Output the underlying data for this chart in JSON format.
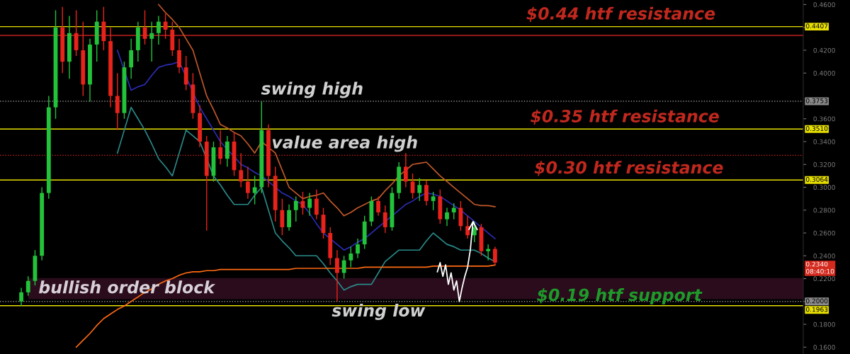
{
  "chart_data": {
    "type": "candlestick",
    "categories": [
      null,
      null,
      null,
      null,
      null,
      null,
      null,
      null,
      null,
      null,
      null,
      null,
      null,
      null,
      null,
      null,
      null,
      null,
      null,
      null,
      null,
      null,
      null,
      null,
      null,
      null,
      null,
      null,
      null,
      null,
      null,
      null,
      null,
      null,
      null,
      null,
      null,
      null,
      null,
      null,
      null,
      null,
      null,
      null,
      null,
      null,
      null,
      null,
      null,
      null,
      null,
      null,
      null,
      null,
      null,
      null,
      null,
      null,
      null,
      null,
      null,
      null,
      null,
      null,
      null,
      null,
      null,
      null,
      null,
      null
    ],
    "ohlc": [
      [
        0.2,
        0.212,
        0.196,
        0.208
      ],
      [
        0.208,
        0.222,
        0.205,
        0.218
      ],
      [
        0.218,
        0.245,
        0.214,
        0.24
      ],
      [
        0.24,
        0.3,
        0.236,
        0.295
      ],
      [
        0.295,
        0.38,
        0.29,
        0.37
      ],
      [
        0.37,
        0.455,
        0.36,
        0.44
      ],
      [
        0.44,
        0.458,
        0.4,
        0.41
      ],
      [
        0.41,
        0.45,
        0.395,
        0.435
      ],
      [
        0.435,
        0.455,
        0.415,
        0.42
      ],
      [
        0.42,
        0.445,
        0.38,
        0.39
      ],
      [
        0.39,
        0.43,
        0.375,
        0.425
      ],
      [
        0.425,
        0.455,
        0.41,
        0.445
      ],
      [
        0.445,
        0.458,
        0.42,
        0.428
      ],
      [
        0.428,
        0.44,
        0.37,
        0.38
      ],
      [
        0.38,
        0.4,
        0.35,
        0.365
      ],
      [
        0.365,
        0.41,
        0.36,
        0.405
      ],
      [
        0.405,
        0.43,
        0.395,
        0.42
      ],
      [
        0.42,
        0.445,
        0.41,
        0.44
      ],
      [
        0.44,
        0.455,
        0.425,
        0.43
      ],
      [
        0.43,
        0.445,
        0.41,
        0.435
      ],
      [
        0.435,
        0.45,
        0.425,
        0.445
      ],
      [
        0.445,
        0.452,
        0.43,
        0.438
      ],
      [
        0.438,
        0.445,
        0.415,
        0.42
      ],
      [
        0.42,
        0.43,
        0.4,
        0.405
      ],
      [
        0.405,
        0.415,
        0.385,
        0.39
      ],
      [
        0.39,
        0.4,
        0.36,
        0.365
      ],
      [
        0.365,
        0.372,
        0.335,
        0.34
      ],
      [
        0.34,
        0.345,
        0.262,
        0.31
      ],
      [
        0.31,
        0.34,
        0.305,
        0.335
      ],
      [
        0.335,
        0.35,
        0.32,
        0.325
      ],
      [
        0.325,
        0.345,
        0.318,
        0.34
      ],
      [
        0.34,
        0.348,
        0.31,
        0.315
      ],
      [
        0.315,
        0.33,
        0.3,
        0.305
      ],
      [
        0.305,
        0.318,
        0.29,
        0.295
      ],
      [
        0.295,
        0.31,
        0.285,
        0.3
      ],
      [
        0.3,
        0.375,
        0.295,
        0.35
      ],
      [
        0.35,
        0.355,
        0.3,
        0.31
      ],
      [
        0.31,
        0.318,
        0.27,
        0.28
      ],
      [
        0.28,
        0.29,
        0.258,
        0.265
      ],
      [
        0.265,
        0.285,
        0.262,
        0.28
      ],
      [
        0.28,
        0.292,
        0.27,
        0.288
      ],
      [
        0.288,
        0.296,
        0.276,
        0.282
      ],
      [
        0.282,
        0.295,
        0.275,
        0.29
      ],
      [
        0.29,
        0.298,
        0.272,
        0.276
      ],
      [
        0.276,
        0.282,
        0.255,
        0.26
      ],
      [
        0.26,
        0.265,
        0.232,
        0.238
      ],
      [
        0.238,
        0.245,
        0.2,
        0.225
      ],
      [
        0.225,
        0.24,
        0.22,
        0.236
      ],
      [
        0.236,
        0.248,
        0.23,
        0.242
      ],
      [
        0.242,
        0.255,
        0.238,
        0.25
      ],
      [
        0.25,
        0.275,
        0.246,
        0.27
      ],
      [
        0.27,
        0.292,
        0.266,
        0.288
      ],
      [
        0.288,
        0.292,
        0.275,
        0.278
      ],
      [
        0.278,
        0.284,
        0.26,
        0.265
      ],
      [
        0.265,
        0.3,
        0.262,
        0.295
      ],
      [
        0.295,
        0.322,
        0.29,
        0.318
      ],
      [
        0.318,
        0.33,
        0.3,
        0.305
      ],
      [
        0.305,
        0.312,
        0.29,
        0.295
      ],
      [
        0.295,
        0.308,
        0.288,
        0.302
      ],
      [
        0.302,
        0.306,
        0.284,
        0.288
      ],
      [
        0.288,
        0.296,
        0.28,
        0.292
      ],
      [
        0.292,
        0.298,
        0.268,
        0.272
      ],
      [
        0.272,
        0.282,
        0.266,
        0.278
      ],
      [
        0.278,
        0.286,
        0.272,
        0.282
      ],
      [
        0.282,
        0.288,
        0.262,
        0.266
      ],
      [
        0.266,
        0.275,
        0.255,
        0.258
      ],
      [
        0.258,
        0.27,
        0.252,
        0.265
      ],
      [
        0.265,
        0.268,
        0.24,
        0.244
      ],
      [
        0.244,
        0.25,
        0.236,
        0.246
      ],
      [
        0.246,
        0.248,
        0.232,
        0.234
      ]
    ],
    "series": [
      {
        "type": "line",
        "color": "#c0582a",
        "values": [
          null,
          null,
          null,
          null,
          null,
          null,
          null,
          null,
          null,
          null,
          null,
          null,
          null,
          null,
          null,
          null,
          null,
          null,
          null,
          null,
          0.46,
          0.453,
          0.447,
          0.44,
          0.43,
          0.42,
          0.4,
          0.38,
          0.368,
          0.355,
          0.352,
          0.348,
          0.345,
          0.338,
          0.33,
          0.34,
          0.335,
          0.33,
          0.315,
          0.3,
          0.295,
          0.29,
          0.292,
          0.293,
          0.295,
          0.288,
          0.282,
          0.275,
          0.278,
          0.282,
          0.285,
          0.288,
          0.29,
          0.297,
          0.303,
          0.31,
          0.315,
          0.32,
          0.321,
          0.322,
          0.316,
          0.31,
          0.305,
          0.3,
          0.295,
          0.29,
          0.285,
          0.284,
          0.284,
          0.283
        ]
      },
      {
        "type": "line",
        "color": "#2c2cb8",
        "values": [
          null,
          null,
          null,
          null,
          null,
          null,
          null,
          null,
          null,
          null,
          null,
          null,
          null,
          null,
          0.42,
          null,
          0.385,
          0.388,
          0.39,
          0.398,
          0.405,
          0.407,
          0.408,
          0.41,
          null,
          null,
          0.37,
          0.36,
          0.35,
          0.34,
          0.333,
          0.327,
          0.32,
          0.317,
          0.313,
          0.31,
          0.305,
          0.3,
          0.295,
          0.292,
          0.288,
          0.285,
          0.277,
          0.268,
          0.26,
          0.255,
          0.25,
          0.245,
          0.248,
          0.252,
          0.255,
          0.26,
          0.265,
          0.27,
          0.275,
          0.28,
          0.285,
          0.288,
          0.292,
          0.295,
          0.294,
          0.292,
          0.288,
          0.284,
          0.28,
          0.275,
          0.27,
          0.265,
          0.26,
          0.255
        ]
      },
      {
        "type": "line",
        "color": "#2a8a8a",
        "values": [
          null,
          null,
          null,
          null,
          null,
          null,
          null,
          null,
          null,
          null,
          null,
          null,
          null,
          null,
          0.33,
          0.35,
          0.37,
          0.36,
          0.35,
          0.338,
          0.325,
          0.318,
          0.31,
          0.33,
          0.35,
          0.345,
          0.34,
          null,
          0.31,
          0.302,
          0.293,
          0.285,
          0.285,
          0.285,
          0.293,
          0.3,
          0.28,
          0.26,
          0.253,
          0.247,
          0.24,
          0.24,
          0.24,
          0.24,
          0.233,
          0.225,
          0.218,
          0.21,
          0.213,
          0.215,
          0.215,
          0.215,
          0.225,
          0.235,
          0.24,
          0.245,
          0.245,
          0.245,
          0.245,
          0.253,
          0.26,
          0.255,
          0.25,
          0.248,
          0.245,
          0.245,
          0.245,
          0.242,
          0.238,
          0.235
        ]
      },
      {
        "type": "line",
        "color": "#ff6a13",
        "values": [
          null,
          null,
          null,
          null,
          null,
          null,
          null,
          null,
          0.16,
          0.166,
          0.172,
          0.179,
          0.185,
          0.189,
          0.193,
          0.196,
          0.2,
          0.204,
          0.208,
          0.211,
          0.215,
          0.218,
          0.22,
          0.223,
          0.225,
          0.226,
          0.226,
          0.227,
          0.227,
          0.228,
          0.228,
          0.228,
          0.228,
          0.228,
          0.228,
          0.228,
          0.228,
          0.228,
          0.228,
          0.228,
          0.229,
          0.229,
          0.229,
          0.229,
          0.229,
          0.229,
          0.229,
          0.229,
          0.229,
          0.229,
          0.23,
          0.23,
          0.23,
          0.23,
          0.23,
          0.23,
          0.23,
          0.23,
          0.23,
          0.23,
          0.231,
          0.231,
          0.231,
          0.231,
          0.231,
          0.231,
          0.231,
          0.231,
          0.231,
          0.232
        ]
      }
    ],
    "ylim": [
      0.154,
      0.464
    ],
    "yticks": [
      {
        "value": 0.16,
        "label": "0.1600"
      },
      {
        "value": 0.18,
        "label": "0.1800"
      },
      {
        "value": 0.2,
        "label": null
      },
      {
        "value": 0.22,
        "label": "0.2200"
      },
      {
        "value": 0.24,
        "label": "0.2400"
      },
      {
        "value": 0.26,
        "label": "0.2600"
      },
      {
        "value": 0.28,
        "label": "0.2800"
      },
      {
        "value": 0.3,
        "label": "0.3000"
      },
      {
        "value": 0.32,
        "label": "0.3200"
      },
      {
        "value": 0.34,
        "label": "0.3400"
      },
      {
        "value": 0.36,
        "label": "0.3600"
      },
      {
        "value": 0.4,
        "label": "0.4000"
      },
      {
        "value": 0.42,
        "label": "0.4200"
      },
      {
        "value": 0.44,
        "label": null
      },
      {
        "value": 0.46,
        "label": "0.4600"
      }
    ],
    "tick_labels": "y",
    "grid": false,
    "ref_lines": [
      {
        "axis": "y",
        "value": 0.4407,
        "label": "0.4407",
        "color": "#e8e000",
        "line_style": "solid"
      },
      {
        "axis": "y",
        "value": 0.433,
        "label": null,
        "color": "#c02020",
        "line_style": "solid"
      },
      {
        "axis": "y",
        "value": 0.3753,
        "label": "0.3753",
        "color": "#8a8a8a",
        "line_style": "dotted"
      },
      {
        "axis": "y",
        "value": 0.351,
        "label": "0.3510",
        "color": "#e8e000",
        "line_style": "solid"
      },
      {
        "axis": "y",
        "value": 0.328,
        "label": null,
        "color": "#d02020",
        "line_style": "dotted"
      },
      {
        "axis": "y",
        "value": 0.3064,
        "label": "0.3064",
        "color": "#e8e000",
        "line_style": "solid"
      },
      {
        "axis": "y",
        "value": 0.2,
        "label": "0.2000",
        "color": "#8a8a8a",
        "line_style": "dotted"
      },
      {
        "axis": "y",
        "value": 0.1963,
        "label": "0.1963",
        "color": "#e8e000",
        "line_style": "solid"
      }
    ],
    "bands": [
      {
        "axis": "y",
        "from": 0.2025,
        "to": 0.22,
        "label": "bullish order block",
        "color": "#2a0c1c"
      }
    ],
    "annotations": [
      "$0.44 htf resistance",
      "$0.35 htf resistance",
      "$0.30 htf resistance",
      "$0.19 htf support",
      "swing high",
      "value area high",
      "swing low",
      "0.2340\n08:40:10"
    ]
  }
}
